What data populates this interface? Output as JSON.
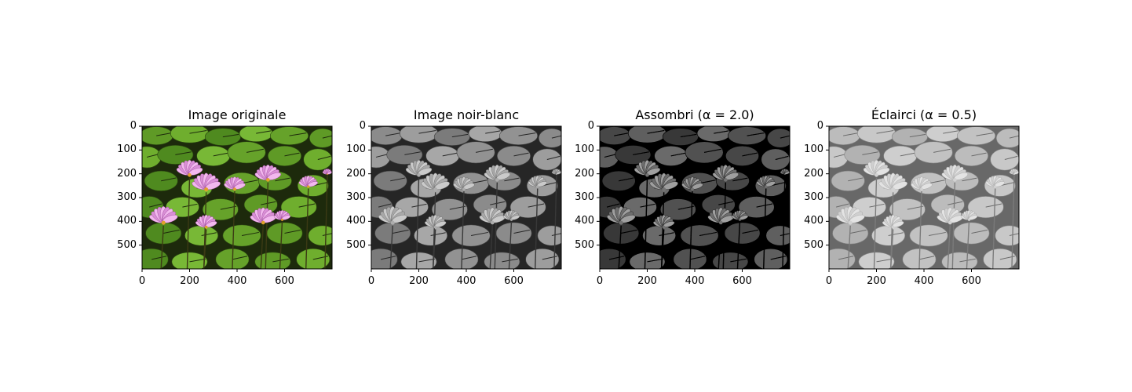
{
  "figure": {
    "panels": [
      {
        "title": "Image originale",
        "variant": "color"
      },
      {
        "title": "Image noir-blanc",
        "variant": "gray"
      },
      {
        "title": "Assombri (α = 2.0)",
        "variant": "dark"
      },
      {
        "title": "Éclairci (α = 0.5)",
        "variant": "light"
      }
    ]
  },
  "chart_data": {
    "type": "image",
    "panels": 4,
    "xlim": [
      0,
      800
    ],
    "ylim": [
      600,
      0
    ],
    "xticks": [
      0,
      200,
      400,
      600
    ],
    "yticks": [
      0,
      100,
      200,
      300,
      400,
      500
    ],
    "xtick_labels": [
      "0",
      "200",
      "400",
      "600"
    ],
    "ytick_labels": [
      "0",
      "100",
      "200",
      "300",
      "400",
      "500"
    ],
    "gamma": {
      "dark": 2.0,
      "light": 0.5
    }
  }
}
